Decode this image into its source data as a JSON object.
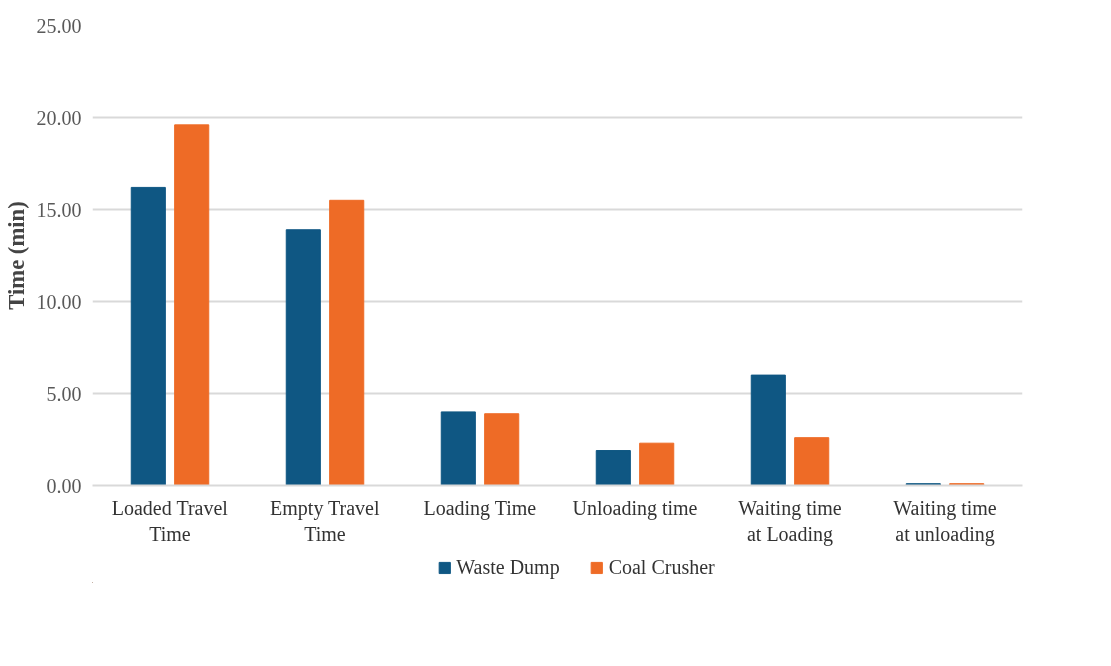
{
  "chart_data": {
    "type": "bar",
    "ylabel": "Time (min)",
    "categories": [
      "Loaded Travel Time",
      "Empty Travel Time",
      "Loading Time",
      "Unloading time",
      "Waiting time at Loading",
      "Waiting time at unloading"
    ],
    "series": [
      {
        "name": "Waste Dump",
        "color": "#0f5783",
        "values": [
          16.2,
          13.9,
          4.0,
          1.9,
          6.0,
          0.1
        ]
      },
      {
        "name": "Coal Crusher",
        "color": "#ee6b26",
        "values": [
          19.6,
          15.5,
          3.9,
          2.3,
          2.6,
          0.1
        ]
      }
    ],
    "ylim": [
      0,
      25
    ],
    "yticks": [
      {
        "value": 0,
        "label": "0.00"
      },
      {
        "value": 5,
        "label": "5.00"
      },
      {
        "value": 10,
        "label": "10.00"
      },
      {
        "value": 15,
        "label": "15.00"
      },
      {
        "value": 20,
        "label": "20.00"
      },
      {
        "value": 25,
        "label": "25.00"
      }
    ],
    "grid": "y",
    "legend": "bottom"
  }
}
